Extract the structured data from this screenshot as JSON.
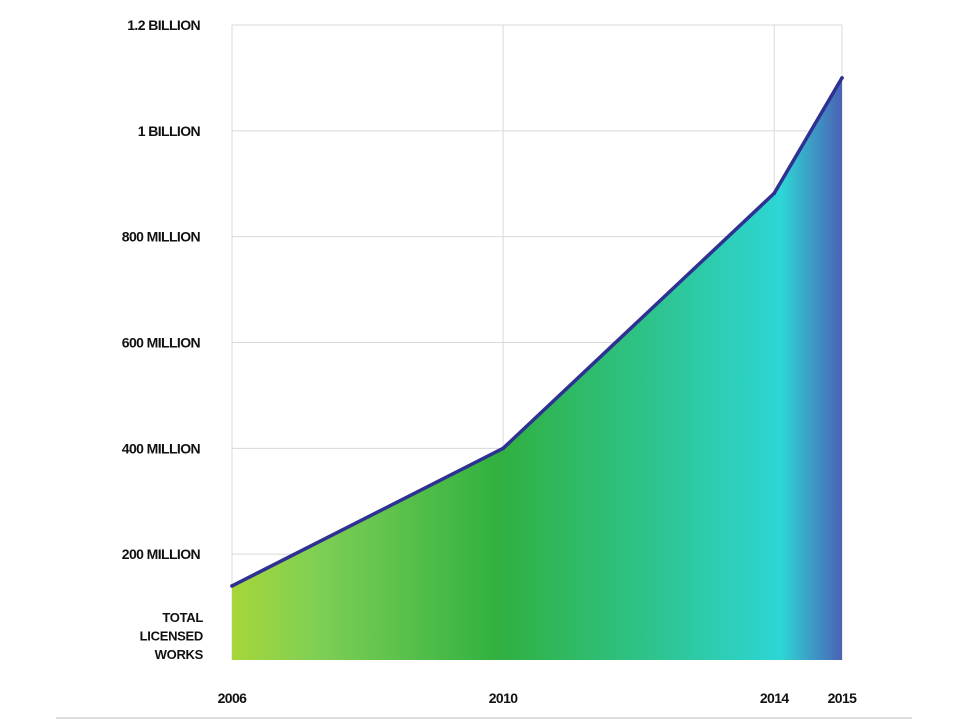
{
  "chart_data": {
    "type": "area",
    "title": "",
    "xlabel": "",
    "ylabel_lines": [
      "TOTAL",
      "LICENSED",
      "WORKS"
    ],
    "x": [
      2006,
      2010,
      2014,
      2015
    ],
    "xlim": [
      2006,
      2015
    ],
    "x_tick_labels": [
      "2006",
      "2010",
      "2014",
      "2015"
    ],
    "series": [
      {
        "values": [
          140000000,
          400000000,
          882000000,
          1100000000
        ]
      }
    ],
    "ylim": [
      0,
      1200000000
    ],
    "y_ticks": [
      200000000,
      400000000,
      600000000,
      800000000,
      1000000000,
      1200000000
    ],
    "y_tick_labels": [
      "200 MILLION",
      "400 MILLION",
      "600 MILLION",
      "800 MILLION",
      "1 BILLION",
      "1.2 BILLION"
    ],
    "grid": true,
    "legend": "none",
    "colors": {
      "line": "#2e3192",
      "gradient": [
        "#a6d63a",
        "#7fcf55",
        "#30b040",
        "#2ec38a",
        "#2dd6d6",
        "#4b62b6"
      ],
      "grid": "#d9d9d9",
      "baseline": "#bbbbbb"
    }
  }
}
